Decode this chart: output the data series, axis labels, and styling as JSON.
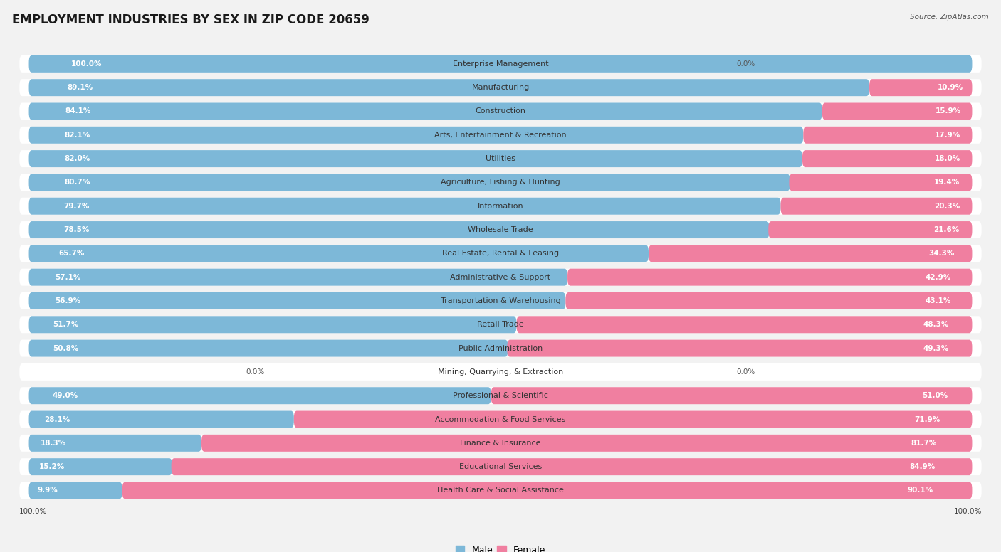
{
  "title": "EMPLOYMENT INDUSTRIES BY SEX IN ZIP CODE 20659",
  "source": "Source: ZipAtlas.com",
  "categories": [
    "Enterprise Management",
    "Manufacturing",
    "Construction",
    "Arts, Entertainment & Recreation",
    "Utilities",
    "Agriculture, Fishing & Hunting",
    "Information",
    "Wholesale Trade",
    "Real Estate, Rental & Leasing",
    "Administrative & Support",
    "Transportation & Warehousing",
    "Retail Trade",
    "Public Administration",
    "Mining, Quarrying, & Extraction",
    "Professional & Scientific",
    "Accommodation & Food Services",
    "Finance & Insurance",
    "Educational Services",
    "Health Care & Social Assistance"
  ],
  "male_pct": [
    100.0,
    89.1,
    84.1,
    82.1,
    82.0,
    80.7,
    79.7,
    78.5,
    65.7,
    57.1,
    56.9,
    51.7,
    50.8,
    0.0,
    49.0,
    28.1,
    18.3,
    15.2,
    9.9
  ],
  "female_pct": [
    0.0,
    10.9,
    15.9,
    17.9,
    18.0,
    19.4,
    20.3,
    21.6,
    34.3,
    42.9,
    43.1,
    48.3,
    49.3,
    0.0,
    51.0,
    71.9,
    81.7,
    84.9,
    90.1
  ],
  "male_color": "#7db8d8",
  "female_color": "#f07fa0",
  "bg_color": "#f2f2f2",
  "bar_bg_color": "#ffffff",
  "title_fontsize": 12,
  "label_fontsize": 8,
  "value_fontsize": 7.5,
  "figsize": [
    14.06,
    7.76
  ]
}
